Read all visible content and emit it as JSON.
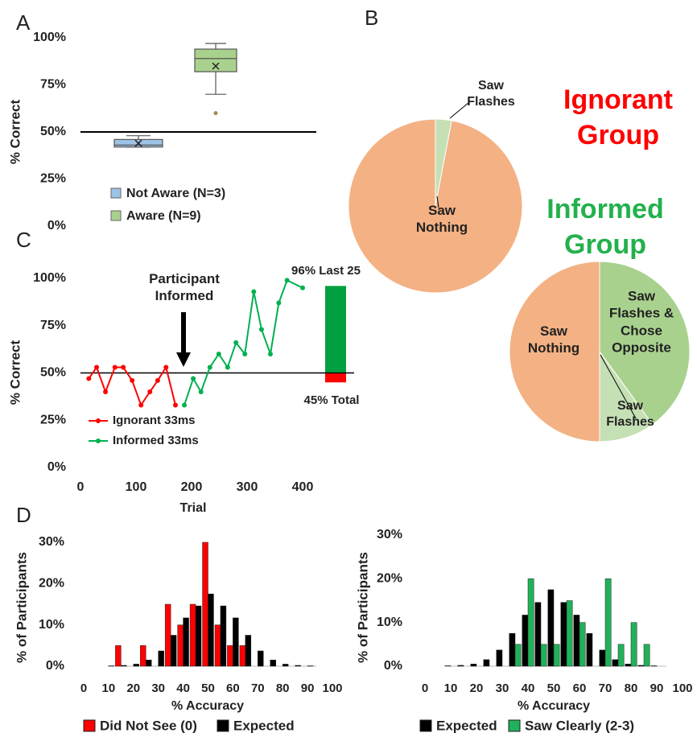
{
  "chart_data": [
    {
      "type": "box",
      "panel": "A",
      "y_label": "% Correct",
      "ylim": [
        0,
        100
      ],
      "yticks": [
        {
          "value": 0,
          "label": "0%"
        },
        {
          "value": 25,
          "label": "25%"
        },
        {
          "value": 50,
          "label": "50%"
        },
        {
          "value": 75,
          "label": "75%"
        },
        {
          "value": 100,
          "label": "100%"
        }
      ],
      "reference_line": 50,
      "series": [
        {
          "name": "Not Aware (N=3)",
          "color": "#9dc3e6",
          "min": 42,
          "q1": 42,
          "median": 43,
          "q3": 46,
          "max": 48,
          "mean": 44
        },
        {
          "name": "Aware (N=9)",
          "color": "#a9d18e",
          "min": 70,
          "q1": 82,
          "median": 89,
          "q3": 94,
          "max": 97,
          "mean": 85,
          "outliers": [
            60
          ]
        }
      ]
    },
    {
      "type": "pie",
      "panel": "B",
      "title": "Ignorant Group",
      "title_color": "#ff0000",
      "categories": [
        "Saw Flashes",
        "Saw Nothing"
      ],
      "values": [
        3,
        97
      ],
      "colors": [
        "#c5e0b4",
        "#f4b183"
      ]
    },
    {
      "type": "pie",
      "title": "Informed Group",
      "title_color": "#22b14c",
      "categories": [
        "Saw Flashes & Chose Opposite",
        "Saw Flashes",
        "Saw Nothing"
      ],
      "values": [
        40,
        10,
        50
      ],
      "colors": [
        "#a9d18e",
        "#c5e0b4",
        "#f4b183"
      ]
    },
    {
      "type": "line",
      "panel": "C",
      "x_label": "Trial",
      "y_label": "% Correct",
      "annotation": "Participant Informed",
      "xlim": [
        0,
        400
      ],
      "xticks": [
        0,
        100,
        200,
        300,
        400
      ],
      "ylim": [
        0,
        100
      ],
      "yticks": [
        {
          "value": 0,
          "label": "0%"
        },
        {
          "value": 25,
          "label": "25%"
        },
        {
          "value": 50,
          "label": "50%"
        },
        {
          "value": 75,
          "label": "75%"
        },
        {
          "value": 100,
          "label": "100%"
        }
      ],
      "reference_line": 50,
      "series": [
        {
          "name": "Ignorant 33ms",
          "color": "#ff0000",
          "x": [
            15,
            29,
            45,
            62,
            77,
            93,
            109,
            125,
            139,
            154,
            171
          ],
          "values": [
            47,
            53,
            40,
            53,
            53,
            46,
            33,
            40,
            46,
            53,
            33
          ]
        },
        {
          "name": "Informed 33ms",
          "color": "#00b050",
          "x": [
            187,
            203,
            217,
            233,
            249,
            265,
            280,
            296,
            312,
            326,
            342,
            357,
            372,
            400
          ],
          "values": [
            33,
            47,
            40,
            53,
            60,
            53,
            66,
            60,
            93,
            73,
            60,
            87,
            99,
            95
          ]
        }
      ],
      "summary_bars": [
        {
          "label": "96% Last 25",
          "value": 96,
          "color": "#00a040"
        },
        {
          "label": "45% Total",
          "value": 45,
          "color": "#ff0000"
        }
      ]
    },
    {
      "type": "bar",
      "panel": "D",
      "x_label": "% Accuracy",
      "y_label": "% of Participants",
      "x": [
        10,
        15,
        20,
        25,
        30,
        35,
        40,
        45,
        50,
        55,
        60,
        65,
        70,
        75,
        80,
        85,
        90
      ],
      "xlim": [
        0,
        100
      ],
      "xticks": [
        0,
        10,
        20,
        30,
        40,
        50,
        60,
        70,
        80,
        90,
        100
      ],
      "ylim": [
        0,
        30
      ],
      "yticks": [
        {
          "value": 0,
          "label": "0%"
        },
        {
          "value": 10,
          "label": "10%"
        },
        {
          "value": 20,
          "label": "20%"
        },
        {
          "value": 30,
          "label": "30%"
        }
      ],
      "series": [
        {
          "name": "Did Not See (0)",
          "color": "#ff0000",
          "values": [
            0,
            5,
            0,
            5,
            0,
            15,
            10,
            15,
            30,
            10,
            5,
            5,
            0,
            0,
            0,
            0,
            0
          ]
        },
        {
          "name": "Expected",
          "color": "#000000",
          "values": [
            0.1,
            0.2,
            0.5,
            1.5,
            3.7,
            7.5,
            11.7,
            14.6,
            17.5,
            14.6,
            11.7,
            7.5,
            3.7,
            1.5,
            0.5,
            0.2,
            0.1
          ]
        }
      ]
    },
    {
      "type": "bar",
      "x_label": "% Accuracy",
      "y_label": "% of Participants",
      "x": [
        10,
        15,
        20,
        25,
        30,
        35,
        40,
        45,
        50,
        55,
        60,
        65,
        70,
        75,
        80,
        85,
        90
      ],
      "xlim": [
        0,
        100
      ],
      "xticks": [
        0,
        10,
        20,
        30,
        40,
        50,
        60,
        70,
        80,
        90,
        100
      ],
      "ylim": [
        0,
        30
      ],
      "yticks": [
        {
          "value": 0,
          "label": "0%"
        },
        {
          "value": 10,
          "label": "10%"
        },
        {
          "value": 20,
          "label": "20%"
        },
        {
          "value": 30,
          "label": "30%"
        }
      ],
      "series": [
        {
          "name": "Expected",
          "color": "#000000",
          "values": [
            0.1,
            0.2,
            0.5,
            1.5,
            3.7,
            7.5,
            11.7,
            14.6,
            17.5,
            14.6,
            11.7,
            7.5,
            3.7,
            1.5,
            0.5,
            0.2,
            0.1
          ]
        },
        {
          "name": "Saw Clearly (2-3)",
          "color": "#1fb25a",
          "values": [
            0,
            0,
            0,
            0,
            0,
            5,
            20,
            5,
            5,
            15,
            10,
            0,
            20,
            5,
            10,
            5,
            0
          ]
        }
      ]
    }
  ]
}
